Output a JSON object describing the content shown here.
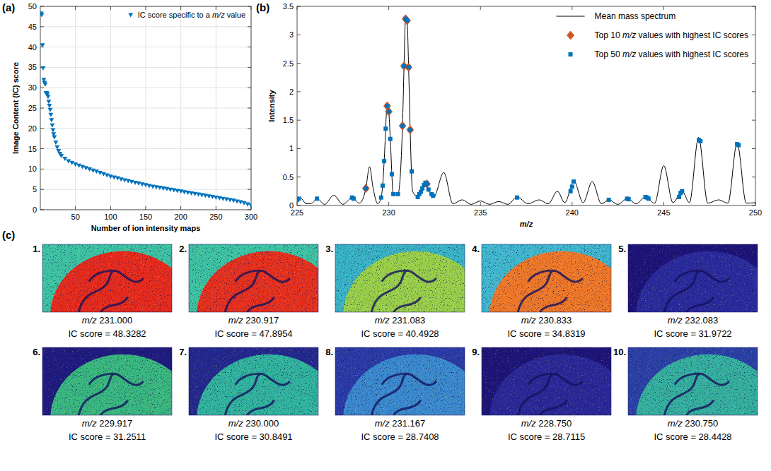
{
  "chart_data": [
    {
      "type": "scatter",
      "panel": "(a)",
      "x_label": "Number of ion intensity maps",
      "y_label": "Image Content (IC) score",
      "x": [
        1,
        2,
        3,
        4,
        5,
        6,
        7,
        8,
        9,
        10,
        11,
        12,
        13,
        14,
        15,
        16,
        17,
        18,
        19,
        20,
        22,
        24,
        26,
        28,
        30,
        35,
        40,
        45,
        50,
        55,
        60,
        65,
        70,
        75,
        80,
        85,
        90,
        95,
        100,
        105,
        110,
        115,
        120,
        125,
        130,
        135,
        140,
        145,
        150,
        155,
        160,
        165,
        170,
        175,
        180,
        185,
        190,
        195,
        200,
        205,
        210,
        215,
        220,
        225,
        230,
        235,
        240,
        245,
        250,
        255,
        260,
        265,
        270,
        275,
        280,
        285,
        290,
        295,
        300
      ],
      "series": [
        {
          "name": "IC score specific to a m/z value",
          "color": "#0072bd",
          "marker": "triangle-down",
          "values": [
            48.3282,
            47.8954,
            40.4928,
            34.8319,
            31.9722,
            31.2511,
            30.8491,
            28.7408,
            28.7115,
            28.4428,
            27.8,
            26.6,
            25.6,
            24.6,
            23.4,
            22.1,
            20.8,
            19.6,
            18.6,
            17.9,
            16.6,
            15.4,
            14.5,
            13.8,
            13.3,
            12.6,
            12.0,
            11.6,
            11.2,
            10.9,
            10.6,
            10.3,
            10.0,
            9.7,
            9.4,
            9.1,
            8.8,
            8.5,
            8.2,
            8.0,
            7.8,
            7.5,
            7.3,
            7.1,
            6.9,
            6.7,
            6.5,
            6.3,
            6.1,
            5.9,
            5.75,
            5.6,
            5.45,
            5.3,
            5.15,
            5.0,
            4.85,
            4.7,
            4.55,
            4.4,
            4.25,
            4.1,
            3.95,
            3.8,
            3.65,
            3.5,
            3.35,
            3.2,
            3.05,
            2.9,
            2.75,
            2.6,
            2.45,
            2.3,
            2.1,
            1.9,
            1.7,
            1.4,
            1.1
          ]
        }
      ],
      "xlim": [
        0,
        300
      ],
      "ylim": [
        0,
        50
      ],
      "xticks": [
        50,
        100,
        150,
        200,
        250,
        300
      ],
      "yticks": [
        0,
        5,
        10,
        15,
        20,
        25,
        30,
        35,
        40,
        45,
        50
      ],
      "grid": true,
      "legend": "top-right"
    },
    {
      "type": "line",
      "panel": "(b)",
      "x_label": "m/z",
      "y_label": "Intensity",
      "series": [
        {
          "name": "Mean mass spectrum",
          "type": "line",
          "color": "#000000",
          "x": [
            225.0,
            225.2,
            225.5,
            225.8,
            226.1,
            226.5,
            227.0,
            227.5,
            228.0,
            228.4,
            228.75,
            228.95,
            229.15,
            229.4,
            229.583,
            229.667,
            229.75,
            229.917,
            230.0,
            230.083,
            230.25,
            230.5,
            230.75,
            230.833,
            230.917,
            231.0,
            231.083,
            231.167,
            231.3,
            231.6,
            231.8,
            232.0,
            232.2,
            232.45,
            233.0,
            233.5,
            234.0,
            234.5,
            235.0,
            235.5,
            236.0,
            236.5,
            237.0,
            237.6,
            238.2,
            238.7,
            239.2,
            239.6,
            240.1,
            240.6,
            241.1,
            241.6,
            242.0,
            242.5,
            243.0,
            243.5,
            244.0,
            244.5,
            245.0,
            245.5,
            246.0,
            246.4,
            246.9,
            247.4,
            248.0,
            248.5,
            249.0,
            249.5,
            250.0
          ],
          "values": [
            0.1,
            0.13,
            0.03,
            0.04,
            0.12,
            0.02,
            0.18,
            0.02,
            0.14,
            0.04,
            0.3,
            0.68,
            0.3,
            0.03,
            0.14,
            0.35,
            0.78,
            1.75,
            1.65,
            1.17,
            0.2,
            0.2,
            1.4,
            2.45,
            3.28,
            3.25,
            2.43,
            1.33,
            0.25,
            0.15,
            0.25,
            0.4,
            0.25,
            0.15,
            0.58,
            0.03,
            0.1,
            0.02,
            0.08,
            0.02,
            0.07,
            0.02,
            0.15,
            0.03,
            0.1,
            0.03,
            0.25,
            0.05,
            0.43,
            0.05,
            0.42,
            0.03,
            0.1,
            0.02,
            0.12,
            0.03,
            0.15,
            0.04,
            0.7,
            0.05,
            0.25,
            0.05,
            1.2,
            0.04,
            0.1,
            0.04,
            1.1,
            0.04,
            0.05
          ]
        },
        {
          "name": "Top 10 m/z values with highest IC scores",
          "type": "scatter",
          "marker": "diamond",
          "color": "#d95319",
          "x": [
            228.75,
            229.917,
            230.0,
            230.75,
            230.833,
            230.917,
            231.0,
            231.083,
            231.167,
            232.083
          ],
          "values": [
            0.3,
            1.75,
            1.65,
            1.4,
            2.45,
            3.28,
            3.25,
            2.43,
            1.33,
            0.38
          ]
        },
        {
          "name": "Top 50 m/z values with highest IC scores",
          "type": "scatter",
          "marker": "square",
          "color": "#0072bd",
          "x": [
            225.0,
            225.083,
            226.083,
            228.0,
            228.083,
            228.75,
            229.583,
            229.667,
            229.75,
            229.833,
            229.917,
            230.0,
            230.083,
            230.167,
            230.25,
            230.5,
            230.75,
            230.833,
            230.917,
            231.0,
            231.083,
            231.167,
            231.25,
            231.583,
            231.667,
            231.75,
            231.833,
            231.917,
            232.0,
            232.083,
            232.167,
            232.333,
            232.417,
            237.0,
            239.917,
            240.0,
            240.083,
            242.0,
            243.0,
            243.083,
            244.0,
            244.083,
            244.167,
            245.833,
            245.917,
            246.0,
            246.917,
            247.0,
            249.0,
            249.083
          ],
          "values": [
            0.1,
            0.12,
            0.12,
            0.14,
            0.12,
            0.3,
            0.14,
            0.35,
            0.78,
            1.35,
            1.75,
            1.65,
            1.17,
            0.55,
            0.2,
            0.2,
            1.4,
            2.45,
            3.28,
            3.25,
            2.43,
            1.33,
            0.6,
            0.15,
            0.2,
            0.24,
            0.3,
            0.36,
            0.4,
            0.38,
            0.28,
            0.2,
            0.17,
            0.14,
            0.25,
            0.33,
            0.42,
            0.1,
            0.12,
            0.11,
            0.15,
            0.14,
            0.12,
            0.15,
            0.22,
            0.25,
            1.15,
            1.13,
            1.08,
            1.06
          ]
        }
      ],
      "xlim": [
        225,
        250
      ],
      "ylim": [
        0,
        3.5
      ],
      "xticks": [
        225,
        230,
        235,
        240,
        245,
        250
      ],
      "yticks": [
        0,
        0.5,
        1,
        1.5,
        2,
        2.5,
        3,
        3.5
      ],
      "grid": false,
      "legend": "top-right"
    },
    {
      "type": "image_grid",
      "panel": "(c)",
      "images": [
        {
          "number": "1.",
          "caption": "m/z 231.000",
          "score": "IC score = 48.3282",
          "colors": [
            "#3cc4a4",
            "#e82a1c"
          ]
        },
        {
          "number": "2.",
          "caption": "m/z 230.917",
          "score": "IC score = 47.8954",
          "colors": [
            "#3cc4a4",
            "#e8301e"
          ]
        },
        {
          "number": "3.",
          "caption": "m/z 231.083",
          "score": "IC score = 40.4928",
          "colors": [
            "#38b4c8",
            "#9ad04a"
          ]
        },
        {
          "number": "4.",
          "caption": "m/z 230.833",
          "score": "IC score = 34.8319",
          "colors": [
            "#40b8d0",
            "#f07828"
          ]
        },
        {
          "number": "5.",
          "caption": "m/z 232.083",
          "score": "IC score = 31.9722",
          "colors": [
            "#1c1278",
            "#2a2a9e"
          ]
        },
        {
          "number": "6.",
          "caption": "m/z 229.917",
          "score": "IC score = 31.2511",
          "colors": [
            "#1e1a80",
            "#38b880"
          ]
        },
        {
          "number": "7.",
          "caption": "m/z 230.000",
          "score": "IC score = 30.8491",
          "colors": [
            "#22288e",
            "#30b4a0"
          ]
        },
        {
          "number": "8.",
          "caption": "m/z 231.167",
          "score": "IC score = 28.7408",
          "colors": [
            "#2a3aa8",
            "#3a8ad0"
          ]
        },
        {
          "number": "9.",
          "caption": "m/z 228.750",
          "score": "IC score = 28.7115",
          "colors": [
            "#1c1478",
            "#2a2898"
          ]
        },
        {
          "number": "10.",
          "caption": "m/z 230.750",
          "score": "IC score = 28.4428",
          "colors": [
            "#2a40a8",
            "#34b0a0"
          ]
        }
      ]
    }
  ]
}
